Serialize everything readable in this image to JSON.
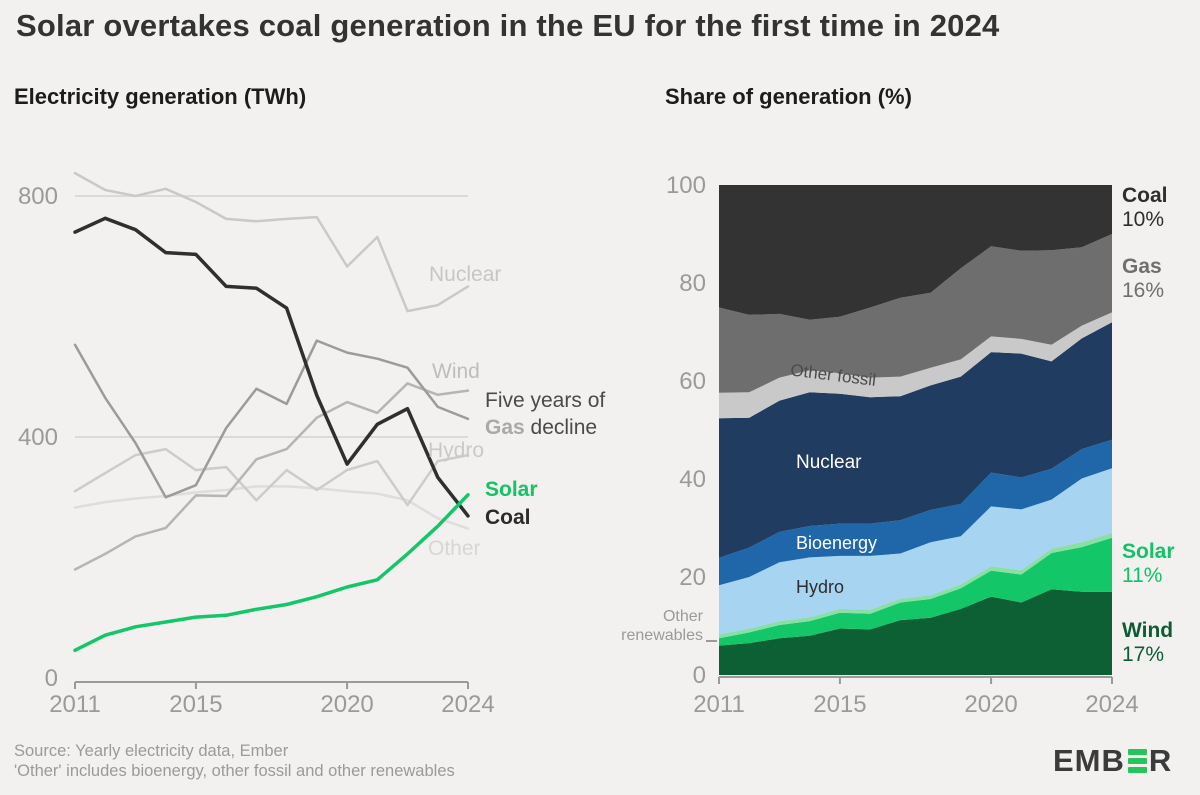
{
  "page": {
    "background": "#f2f1ef"
  },
  "title": "Solar overtakes coal generation in the EU for the first time in 2024",
  "left_chart": {
    "subtitle": "Electricity generation (TWh)",
    "line_labels": {
      "nuclear": "Nuclear",
      "wind": "Wind",
      "hydro": "Hydro",
      "other": "Other",
      "solar": "Solar",
      "coal": "Coal"
    },
    "annotation": {
      "line1": "Five years of",
      "bold_word": "Gas",
      "line2_rest": " decline"
    }
  },
  "right_chart": {
    "subtitle": "Share of generation (%)",
    "area_labels": {
      "other_fossil": "Other fossil",
      "nuclear": "Nuclear",
      "bioenergy": "Bioenergy",
      "hydro": "Hydro"
    },
    "outside_label": {
      "line1": "Other",
      "line2": "renewables"
    },
    "legend": [
      {
        "name": "Coal",
        "value": "10%",
        "color": "#2e2e2e"
      },
      {
        "name": "Gas",
        "value": "16%",
        "color": "#6f6f6f"
      },
      {
        "name": "Solar",
        "value": "11%",
        "color": "#12c168"
      },
      {
        "name": "Wind",
        "value": "17%",
        "color": "#0d5c34"
      }
    ]
  },
  "footer": {
    "source": "Source: Yearly electricity data, Ember",
    "note": "'Other' includes bioenergy, other fossil and other renewables"
  },
  "logo": {
    "prefix": "EMB",
    "suffix": "R",
    "bar_color": "#27c35b"
  },
  "chart_data": [
    {
      "type": "line",
      "title": "Electricity generation (TWh)",
      "xlabel": "",
      "ylabel": "TWh",
      "x": [
        2011,
        2012,
        2013,
        2014,
        2015,
        2016,
        2017,
        2018,
        2019,
        2020,
        2021,
        2022,
        2023,
        2024
      ],
      "xticks": [
        2011,
        2015,
        2020,
        2024
      ],
      "yticks": [
        0,
        400,
        800
      ],
      "gridlines": [
        400,
        800
      ],
      "ylim": [
        0,
        860
      ],
      "grid": "horizontal-only",
      "legend_position": "inline-right",
      "axis_color": "#9a9a9a",
      "grid_color": "#dadada",
      "series": [
        {
          "name": "Other",
          "color": "#dddddd",
          "width": 2.5,
          "values": [
            283,
            292,
            298,
            302,
            308,
            312,
            318,
            318,
            315,
            310,
            306,
            295,
            265,
            248
          ]
        },
        {
          "name": "Hydro",
          "color": "#cccccc",
          "width": 2.5,
          "values": [
            310,
            340,
            370,
            380,
            345,
            350,
            295,
            345,
            312,
            345,
            360,
            287,
            360,
            370
          ]
        },
        {
          "name": "Nuclear",
          "color": "#c9c9c9",
          "width": 2.5,
          "values": [
            838,
            810,
            800,
            812,
            790,
            762,
            758,
            762,
            765,
            683,
            732,
            609,
            619,
            650
          ]
        },
        {
          "name": "Wind",
          "color": "#b5b5b5",
          "width": 2.5,
          "values": [
            180,
            206,
            235,
            249,
            303,
            302,
            363,
            380,
            432,
            458,
            440,
            489,
            470,
            477
          ]
        },
        {
          "name": "Gas",
          "color": "#9b9b9b",
          "width": 2.5,
          "values": [
            553,
            465,
            390,
            300,
            320,
            415,
            480,
            455,
            560,
            540,
            530,
            515,
            450,
            430
          ]
        },
        {
          "name": "Coal",
          "color": "#2f2f2f",
          "width": 3.5,
          "values": [
            740,
            763,
            744,
            706,
            703,
            650,
            647,
            614,
            469,
            355,
            421,
            447,
            333,
            269
          ]
        },
        {
          "name": "Solar",
          "color": "#13c768",
          "width": 3.5,
          "values": [
            46,
            71,
            85,
            93,
            101,
            104,
            114,
            122,
            135,
            151,
            163,
            206,
            252,
            304
          ]
        }
      ]
    },
    {
      "type": "area",
      "title": "Share of generation (%)",
      "xlabel": "",
      "ylabel": "%",
      "stacked": true,
      "x": [
        2011,
        2012,
        2013,
        2014,
        2015,
        2016,
        2017,
        2018,
        2019,
        2020,
        2021,
        2022,
        2023,
        2024
      ],
      "xticks": [
        2011,
        2015,
        2020,
        2024
      ],
      "yticks": [
        0,
        20,
        40,
        60,
        80,
        100
      ],
      "ylim": [
        0,
        100
      ],
      "grid": "off",
      "axis_color": "#9a9a9a",
      "series_order": "bottom-to-top",
      "series": [
        {
          "name": "Wind",
          "color": "#0d6034",
          "values": [
            6,
            6.5,
            7.5,
            8,
            9.5,
            9.3,
            11.2,
            11.7,
            13.5,
            16,
            14.8,
            17.5,
            17,
            17
          ]
        },
        {
          "name": "Solar",
          "color": "#13c768",
          "values": [
            1.5,
            2.2,
            2.7,
            3,
            3.2,
            3.2,
            3.6,
            3.8,
            4.2,
            5.3,
            5.7,
            7.4,
            9.1,
            11
          ]
        },
        {
          "name": "Other renewables",
          "color": "#8adfa6",
          "values": [
            0.8,
            0.8,
            0.8,
            0.8,
            0.8,
            0.8,
            0.8,
            0.8,
            0.8,
            0.9,
            0.9,
            0.9,
            1,
            1
          ]
        },
        {
          "name": "Hydro",
          "color": "#a6d4f1",
          "values": [
            10,
            10.5,
            12,
            12.2,
            10.8,
            11,
            9.2,
            10.8,
            9.8,
            12.2,
            12.4,
            10,
            13,
            13.2
          ]
        },
        {
          "name": "Bioenergy",
          "color": "#1f67a8",
          "values": [
            5.6,
            6,
            6.2,
            6.4,
            6.6,
            6.6,
            6.8,
            6.6,
            6.6,
            6.9,
            6.5,
            6.3,
            6,
            5.8
          ]
        },
        {
          "name": "Nuclear",
          "color": "#203c61",
          "values": [
            28.5,
            26.5,
            26.8,
            27.3,
            26.5,
            25.8,
            25.3,
            25.4,
            26,
            24.6,
            25.3,
            21.9,
            22.6,
            24
          ]
        },
        {
          "name": "Other fossil",
          "color": "#c9c9c9",
          "values": [
            5.2,
            5.2,
            4.7,
            4.5,
            4.2,
            4,
            4,
            3.6,
            3.5,
            3.2,
            3,
            3.4,
            2.6,
            2
          ]
        },
        {
          "name": "Gas",
          "color": "#6e6e6e",
          "values": [
            17.4,
            15.8,
            13,
            10.3,
            11.5,
            14.3,
            16.1,
            15.3,
            18.6,
            18.4,
            18,
            19.3,
            16,
            16
          ]
        },
        {
          "name": "Coal",
          "color": "#333333",
          "values": [
            25,
            26.5,
            26.3,
            27.5,
            26.9,
            25,
            23,
            22,
            17,
            12.5,
            13.4,
            13.3,
            12.7,
            10
          ]
        }
      ]
    }
  ]
}
